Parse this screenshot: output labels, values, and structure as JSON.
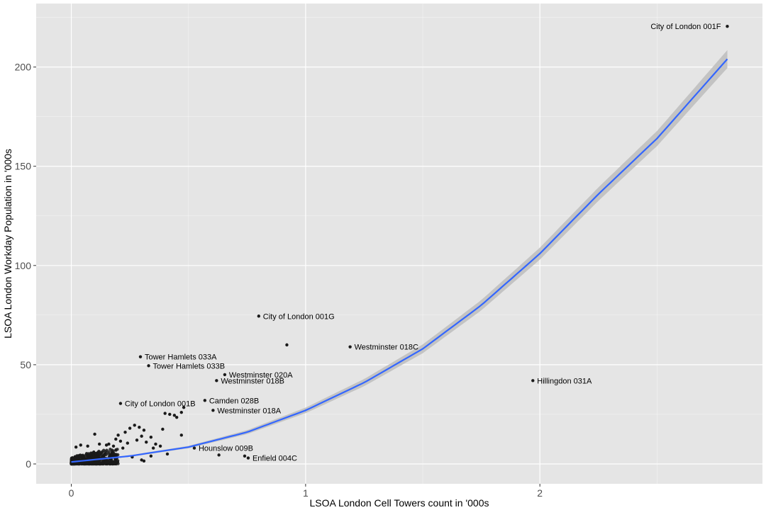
{
  "chart_data": {
    "type": "scatter",
    "title": "",
    "xlabel": "LSOA London Cell Towers count in '000s",
    "ylabel": "LSOA London Workday Population in '000s",
    "xlim": [
      -0.15,
      2.95
    ],
    "ylim": [
      -10,
      232
    ],
    "x_ticks": [
      0,
      1,
      2
    ],
    "x_tick_labels": [
      "0",
      "1",
      "2"
    ],
    "y_ticks": [
      0,
      50,
      100,
      150,
      200
    ],
    "y_tick_labels": [
      "0",
      "50",
      "100",
      "150",
      "200"
    ],
    "x_minor_ticks": [
      0.5,
      1.5,
      2.5
    ],
    "y_minor_ticks": [
      25,
      75,
      125,
      175,
      225
    ],
    "grid": true,
    "colors": {
      "panel_background": "#e5e5e5",
      "grid_major": "#ffffff",
      "points": "#1a1a1a",
      "fit_line": "#3366ff",
      "confidence_band": "#bfbfbf"
    },
    "labeled_points": [
      {
        "label": "City of London 001F",
        "x": 2.8,
        "y": 220.5,
        "label_side": "left"
      },
      {
        "label": "City of London 001G",
        "x": 0.8,
        "y": 74.5,
        "label_side": "right"
      },
      {
        "label": "Westminster 018C",
        "x": 1.19,
        "y": 59.0,
        "label_side": "right"
      },
      {
        "label": "Tower Hamlets 033A",
        "x": 0.295,
        "y": 54.0,
        "label_side": "right"
      },
      {
        "label": "Tower Hamlets 033B",
        "x": 0.33,
        "y": 49.5,
        "label_side": "right"
      },
      {
        "label": "Westminster 020A",
        "x": 0.655,
        "y": 45.0,
        "label_side": "right"
      },
      {
        "label": "Westminster 018B",
        "x": 0.62,
        "y": 42.0,
        "label_side": "right"
      },
      {
        "label": "Hillingdon 031A",
        "x": 1.97,
        "y": 42.0,
        "label_side": "right"
      },
      {
        "label": "City of London 001B",
        "x": 0.21,
        "y": 30.5,
        "label_side": "right"
      },
      {
        "label": "Camden 028B",
        "x": 0.57,
        "y": 32.0,
        "label_side": "right"
      },
      {
        "label": "Westminster 018A",
        "x": 0.605,
        "y": 27.0,
        "label_side": "right"
      },
      {
        "label": "Hounslow 009B",
        "x": 0.525,
        "y": 8.0,
        "label_side": "right"
      },
      {
        "label": "Enfield 004C",
        "x": 0.755,
        "y": 3.0,
        "label_side": "right"
      }
    ],
    "other_points": [
      {
        "x": 0.92,
        "y": 60.0
      },
      {
        "x": 0.48,
        "y": 28.5
      },
      {
        "x": 0.47,
        "y": 26.0
      },
      {
        "x": 0.44,
        "y": 24.5
      },
      {
        "x": 0.42,
        "y": 25.0
      },
      {
        "x": 0.4,
        "y": 25.5
      },
      {
        "x": 0.45,
        "y": 23.5
      },
      {
        "x": 0.39,
        "y": 17.5
      },
      {
        "x": 0.47,
        "y": 14.5
      },
      {
        "x": 0.63,
        "y": 4.5
      },
      {
        "x": 0.74,
        "y": 4.0
      },
      {
        "x": 0.41,
        "y": 5.0
      },
      {
        "x": 0.27,
        "y": 19.5
      },
      {
        "x": 0.29,
        "y": 18.5
      },
      {
        "x": 0.31,
        "y": 17.0
      },
      {
        "x": 0.25,
        "y": 18.0
      },
      {
        "x": 0.23,
        "y": 16.0
      },
      {
        "x": 0.2,
        "y": 14.5
      },
      {
        "x": 0.1,
        "y": 15.0
      },
      {
        "x": 0.34,
        "y": 13.5
      },
      {
        "x": 0.3,
        "y": 14.0
      },
      {
        "x": 0.32,
        "y": 11.0
      },
      {
        "x": 0.28,
        "y": 12.0
      },
      {
        "x": 0.36,
        "y": 10.0
      },
      {
        "x": 0.38,
        "y": 9.0
      },
      {
        "x": 0.35,
        "y": 8.0
      },
      {
        "x": 0.34,
        "y": 4.0
      },
      {
        "x": 0.31,
        "y": 1.5
      },
      {
        "x": 0.3,
        "y": 2.0
      },
      {
        "x": 0.26,
        "y": 3.5
      },
      {
        "x": 0.22,
        "y": 8.0
      },
      {
        "x": 0.24,
        "y": 10.5
      },
      {
        "x": 0.21,
        "y": 11.5
      },
      {
        "x": 0.19,
        "y": 12.5
      },
      {
        "x": 0.18,
        "y": 9.0
      },
      {
        "x": 0.16,
        "y": 10.0
      },
      {
        "x": 0.15,
        "y": 9.5
      },
      {
        "x": 0.12,
        "y": 10.0
      },
      {
        "x": 0.07,
        "y": 9.0
      },
      {
        "x": 0.04,
        "y": 9.5
      },
      {
        "x": 0.02,
        "y": 8.5
      }
    ],
    "dense_cluster": {
      "x": [
        0.0,
        0.2
      ],
      "y": [
        0.0,
        8.0
      ]
    },
    "fit": {
      "type": "exponential",
      "x": [
        0.0,
        0.25,
        0.5,
        0.75,
        1.0,
        1.25,
        1.5,
        1.75,
        2.0,
        2.25,
        2.5,
        2.8
      ],
      "y": [
        1.0,
        4.0,
        8.5,
        16.0,
        27.0,
        41.0,
        58.0,
        80.0,
        106.0,
        136.0,
        164.0,
        204.0
      ],
      "band_halfwidth": [
        0.3,
        0.4,
        0.6,
        1.0,
        1.4,
        1.8,
        2.2,
        2.6,
        3.0,
        3.4,
        3.8,
        4.5
      ]
    }
  }
}
